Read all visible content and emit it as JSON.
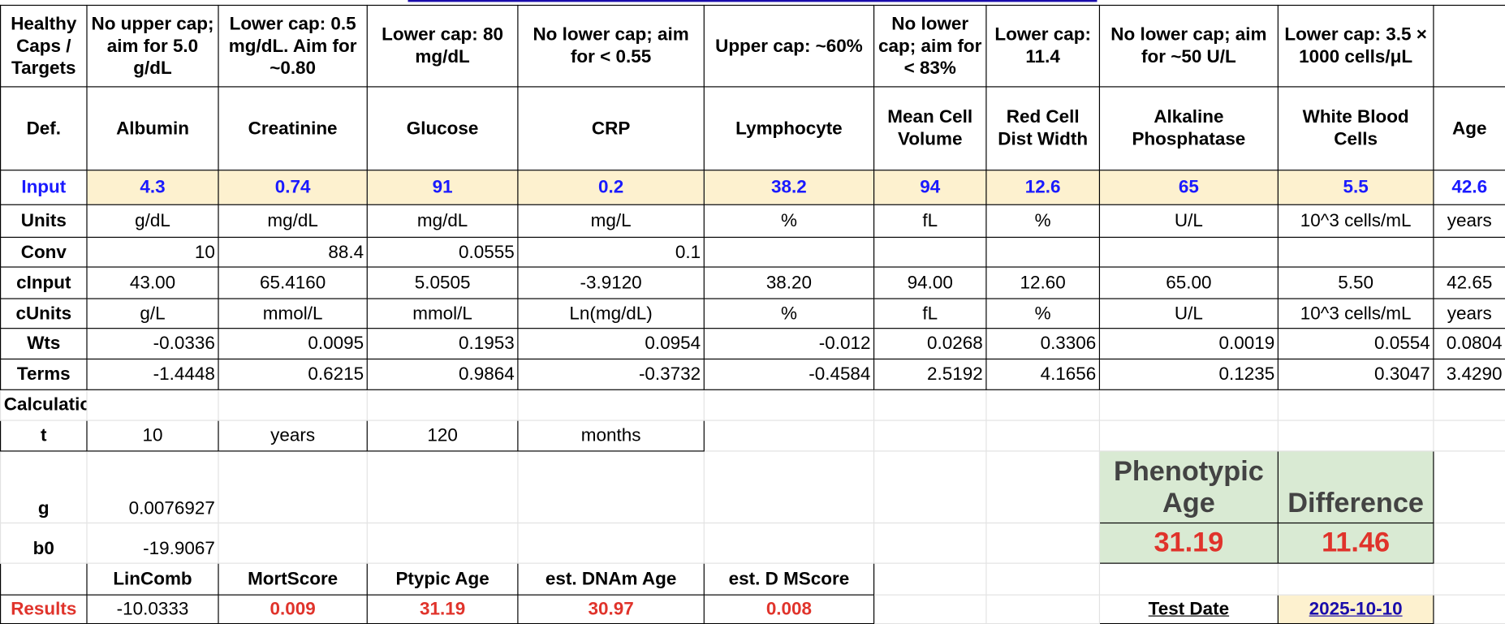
{
  "rows": [
    [
      "Healthy Caps / Targets",
      "No upper cap; aim for 5.0 g/dL",
      "Lower cap: 0.5 mg/dL. Aim for ~0.80",
      "Lower cap: 80 mg/dL",
      "No lower cap; aim for < 0.55",
      "Upper cap: ~60%",
      "No lower cap; aim for < 83%",
      "Lower cap: 11.4",
      "No lower cap; aim for ~50 U/L",
      "Lower cap: 3.5 × 1000 cells/μL",
      null
    ],
    [
      "Def.",
      "Albumin",
      "Creatinine",
      "Glucose",
      "CRP",
      "Lymphocyte",
      "Mean Cell Volume",
      "Red Cell Dist Width",
      "Alkaline Phosphatase",
      "White Blood Cells",
      "Age"
    ],
    [
      "Input",
      "4.3",
      "0.74",
      "91",
      "0.2",
      "38.2",
      "94",
      "12.6",
      "65",
      "5.5",
      "42.6"
    ],
    [
      "Units",
      "g/dL",
      "mg/dL",
      "mg/dL",
      "mg/L",
      "%",
      "fL",
      "%",
      "U/L",
      "10^3 cells/mL",
      "years"
    ],
    [
      "Conv",
      "10",
      "88.4",
      "0.0555",
      "0.1",
      null,
      null,
      null,
      null,
      null,
      null
    ],
    [
      "cInput",
      "43.00",
      "65.4160",
      "5.0505",
      "-3.9120",
      "38.20",
      "94.00",
      "12.60",
      "65.00",
      "5.50",
      "42.65"
    ],
    [
      "cUnits",
      "g/L",
      "mmol/L",
      "mmol/L",
      "Ln(mg/dL)",
      "%",
      "fL",
      "%",
      "U/L",
      "10^3 cells/mL",
      "years"
    ],
    [
      "Wts",
      "-0.0336",
      "0.0095",
      "0.1953",
      "0.0954",
      "-0.012",
      "0.0268",
      "0.3306",
      "0.0019",
      "0.0554",
      "0.0804"
    ],
    [
      "Terms",
      "-1.4448",
      "0.6215",
      "0.9864",
      "-0.3732",
      "-0.4584",
      "2.5192",
      "4.1656",
      "0.1235",
      "0.3047",
      "3.4290"
    ],
    [
      "Calculation:",
      null,
      null,
      null,
      null,
      null,
      null,
      null,
      null,
      null,
      null
    ],
    [
      "t",
      "10",
      "years",
      "120",
      "months",
      null,
      null,
      null,
      null,
      null,
      null
    ],
    [
      "g",
      "0.0076927",
      null,
      null,
      null,
      null,
      null,
      null,
      "Phenotypic Age",
      "Difference",
      null
    ],
    [
      "b0",
      "-19.9067",
      null,
      null,
      null,
      null,
      null,
      null,
      "31.19",
      "11.46",
      null
    ],
    [
      null,
      "LinComb",
      "MortScore",
      "Ptypic Age",
      "est. DNAm Age",
      "est. D MScore",
      null,
      null,
      null,
      null,
      null
    ],
    [
      "Results",
      "-10.0333",
      "0.009",
      "31.19",
      "30.97",
      "0.008",
      null,
      null,
      "Test Date",
      "2025-10-10",
      null
    ]
  ]
}
